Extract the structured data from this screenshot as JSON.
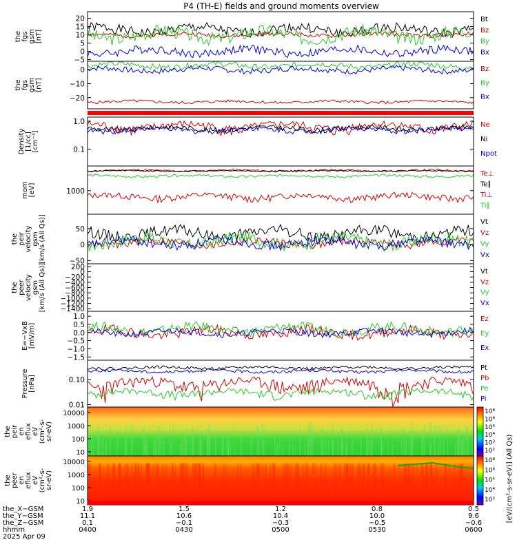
{
  "title": "P4 (TH-E) fields and ground moments overview",
  "colors": {
    "black": "#000000",
    "red": "#d40000",
    "green": "#22cc22",
    "blue": "#0000dd"
  },
  "chart_data": [
    {
      "type": "line",
      "id": "p1",
      "ylabel": [
        "the",
        "fgs",
        "gsm",
        "[nT]"
      ],
      "ylim": [
        -6,
        24
      ],
      "yticks": [
        -5,
        0,
        5,
        10,
        15,
        20
      ],
      "yticklabels": [
        "−5",
        "0",
        "5",
        "10",
        "15",
        "20"
      ],
      "scale": "linear",
      "series": [
        {
          "name": "Bt",
          "color": "#000000",
          "base": 13,
          "amp": 3,
          "seed": 1
        },
        {
          "name": "Bz",
          "color": "#d40000",
          "base": 10,
          "amp": 1.2,
          "seed": 2
        },
        {
          "name": "By",
          "color": "#22cc22",
          "base": 10,
          "amp": 4,
          "seed": 3
        },
        {
          "name": "Bx",
          "color": "#0000dd",
          "base": 0,
          "amp": 2.5,
          "seed": 4
        }
      ]
    },
    {
      "type": "line",
      "id": "p2",
      "ylabel": [
        "the",
        "fgs",
        "gsm",
        "[nT]"
      ],
      "ylim": [
        -28,
        6
      ],
      "yticks": [
        -20,
        -10,
        0
      ],
      "yticklabels": [
        "−20",
        "−10",
        "0"
      ],
      "scale": "linear",
      "series": [
        {
          "name": "Bz",
          "color": "#d40000",
          "base": -23,
          "amp": 1,
          "seed": 5
        },
        {
          "name": "By",
          "color": "#22cc22",
          "base": 3,
          "amp": 2,
          "seed": 6
        },
        {
          "name": "Bx",
          "color": "#0000dd",
          "base": 0,
          "amp": 2,
          "seed": 7
        }
      ]
    },
    {
      "type": "line",
      "id": "p3",
      "ylabel": [
        "Density",
        "[1/cc]",
        "[cm⁻³]"
      ],
      "ylim": [
        0.025,
        1.4
      ],
      "yticks": [
        0.1,
        1.0
      ],
      "yticklabels": [
        "0.1",
        "1.0"
      ],
      "scale": "log",
      "series": [
        {
          "name": "Ne",
          "color": "#d40000",
          "base": 0.65,
          "amp": 0.25,
          "seed": 8
        },
        {
          "name": "Ni",
          "color": "#000000",
          "base": 0.55,
          "amp": 0.12,
          "seed": 9
        },
        {
          "name": "Npot",
          "color": "#0000dd",
          "base": 0.5,
          "amp": 0.1,
          "seed": 10
        }
      ]
    },
    {
      "type": "line",
      "id": "p4",
      "ylabel": [
        "mom",
        "[eV]"
      ],
      "ylim": [
        180,
        6000
      ],
      "yticks": [
        1000
      ],
      "yticklabels": [
        "1000"
      ],
      "scale": "log",
      "series": [
        {
          "name": "Te⊥",
          "color": "#d40000",
          "base": 4300,
          "amp": 300,
          "seed": 11
        },
        {
          "name": "Te∥",
          "color": "#000000",
          "base": 4200,
          "amp": 200,
          "seed": 12
        },
        {
          "name": "Ti⊥",
          "color": "#d40000",
          "base": 650,
          "amp": 150,
          "seed": 13
        },
        {
          "name": "Ti∥",
          "color": "#22cc22",
          "base": 2900,
          "amp": 250,
          "seed": 14
        }
      ]
    },
    {
      "type": "line",
      "id": "p5",
      "ylabel": [
        "the",
        "peir",
        "velocity",
        "gsm",
        "[km/s (All Qs)]"
      ],
      "ylim": [
        -60,
        95
      ],
      "yticks": [
        -50,
        0,
        50
      ],
      "yticklabels": [
        "−50",
        "0",
        "50"
      ],
      "scale": "linear",
      "series": [
        {
          "name": "Vt",
          "color": "#000000",
          "base": 35,
          "amp": 18,
          "seed": 15
        },
        {
          "name": "Vz",
          "color": "#d40000",
          "base": 5,
          "amp": 12,
          "seed": 16
        },
        {
          "name": "Vy",
          "color": "#22cc22",
          "base": 10,
          "amp": 20,
          "seed": 17
        },
        {
          "name": "Vx",
          "color": "#0000dd",
          "base": 5,
          "amp": 15,
          "seed": 18
        }
      ]
    },
    {
      "type": "line",
      "id": "p6",
      "ylabel": [
        "the",
        "peer",
        "velocity",
        "gsm",
        "[km/s (All Qs)]"
      ],
      "ylim": [
        -1500,
        300
      ],
      "yticks": [
        -1400,
        -1200,
        -1000,
        -800,
        -600,
        -400,
        -200,
        0,
        200
      ],
      "yticklabels": [
        "−1400",
        "−1200",
        "−1000",
        "−800",
        "−600",
        "−400",
        "−200",
        "0",
        "200"
      ],
      "scale": "linear",
      "series": [
        {
          "name": "Vt",
          "color": "#000000"
        },
        {
          "name": "Vz",
          "color": "#d40000"
        },
        {
          "name": "Vy",
          "color": "#22cc22"
        },
        {
          "name": "Vx",
          "color": "#0000dd"
        }
      ]
    },
    {
      "type": "line",
      "id": "p7",
      "ylabel": [
        "E=−VxB",
        "[mV/m]"
      ],
      "ylim": [
        -1.7,
        1.3
      ],
      "yticks": [
        -1.5,
        -1.0,
        -0.5,
        0,
        0.5,
        1.0
      ],
      "yticklabels": [
        "−1.5",
        "−1.0",
        "−0.5",
        "0.0",
        "0.5",
        "1.0"
      ],
      "scale": "linear",
      "series": [
        {
          "name": "Ez",
          "color": "#d40000",
          "base": 0,
          "amp": 0.3,
          "seed": 19
        },
        {
          "name": "Ey",
          "color": "#22cc22",
          "base": 0.2,
          "amp": 0.3,
          "seed": 20
        },
        {
          "name": "Ex",
          "color": "#0000dd",
          "base": 0,
          "amp": 0.2,
          "seed": 21
        }
      ]
    },
    {
      "type": "line",
      "id": "p8",
      "ylabel": [
        "Pressure",
        "[nPa]"
      ],
      "ylim": [
        0.008,
        0.6
      ],
      "yticks": [
        0.01,
        0.1
      ],
      "yticklabels": [
        "0.01",
        "0.10"
      ],
      "scale": "log",
      "series": [
        {
          "name": "Pt",
          "color": "#000000",
          "base": 0.3,
          "amp": 0.04,
          "seed": 22
        },
        {
          "name": "Pb",
          "color": "#d40000",
          "base": 0.07,
          "amp": 0.04,
          "seed": 23
        },
        {
          "name": "Pe",
          "color": "#22cc22",
          "base": 0.03,
          "amp": 0.01,
          "seed": 24
        },
        {
          "name": "Pi",
          "color": "#0000dd",
          "base": 0.22,
          "amp": 0.03,
          "seed": 25
        }
      ]
    },
    {
      "type": "heatmap",
      "id": "s1",
      "ylabel": [
        "the",
        "peir",
        "en",
        "eflux",
        "eV",
        "(cm²-s-",
        "sr-eV)"
      ],
      "yticks": [
        10,
        100,
        1000,
        10000
      ],
      "yticklabels": [
        "10",
        "100",
        "1000",
        "10000"
      ],
      "scale": "log",
      "colorbar": {
        "label": "[eV/(cm²-s-sr-eV)] (All Qs)",
        "ticks": [
          "10²",
          "10³",
          "10⁴",
          "10⁵",
          "10⁶",
          "10⁸"
        ]
      }
    },
    {
      "type": "heatmap",
      "id": "s2",
      "ylabel": [
        "the",
        "peer",
        "en",
        "eflux",
        "eV",
        "(cm²-s-",
        "sr-eV)"
      ],
      "yticks": [
        10,
        100,
        1000,
        10000
      ],
      "yticklabels": [
        "10",
        "100",
        "1000",
        "10000"
      ],
      "scale": "log",
      "colorbar": {
        "label": "[eV/(cm²-s-sr-eV)]",
        "ticks": [
          "10²",
          "10⁴",
          "10⁵",
          "10⁶",
          "10⁸"
        ]
      }
    }
  ],
  "x_axis": {
    "times": [
      "0400",
      "0430",
      "0500",
      "0530",
      "0600"
    ],
    "rows": [
      {
        "label": "the_X−GSM",
        "values": [
          "1.9",
          "1.5",
          "1.2",
          "0.8",
          "0.5"
        ]
      },
      {
        "label": "the_Y−GSM",
        "values": [
          "11.1",
          "10.6",
          "10.4",
          "10.0",
          "9.6"
        ]
      },
      {
        "label": "the_Z−GSM",
        "values": [
          "0.1",
          "−0.1",
          "−0.3",
          "−0.5",
          "−0.6"
        ]
      },
      {
        "label": "hhmm",
        "values": [
          "0400",
          "0430",
          "0500",
          "0530",
          "0600"
        ]
      }
    ],
    "date": "2025 Apr 09"
  },
  "colorbar_label": "[eV/(cm²-s-sr-eV)]  (All Qs)"
}
